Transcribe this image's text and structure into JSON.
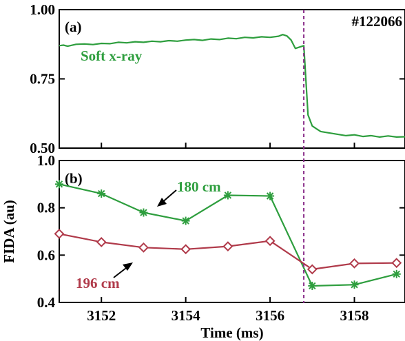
{
  "figure": {
    "shot_label": "#122066",
    "xlabel": "Time (ms)",
    "xticks": [
      "3152",
      "3154",
      "3156",
      "3158"
    ],
    "event_time": 3156.8,
    "event_color": "#8a2e8a"
  },
  "chart_data": [
    {
      "type": "line",
      "panel_label": "(a)",
      "xlim": [
        3151,
        3159.2
      ],
      "ylim": [
        0.5,
        1.0
      ],
      "yticks": [
        "0.50",
        "0.75",
        "1.00"
      ],
      "ylabel": "",
      "series": [
        {
          "name": "Soft x-ray",
          "color": "#2e9e3e",
          "x": [
            3151.0,
            3151.1,
            3151.2,
            3151.4,
            3151.6,
            3151.8,
            3152.0,
            3152.2,
            3152.4,
            3152.6,
            3152.8,
            3153.0,
            3153.2,
            3153.4,
            3153.6,
            3153.8,
            3154.0,
            3154.2,
            3154.4,
            3154.6,
            3154.8,
            3155.0,
            3155.2,
            3155.4,
            3155.6,
            3155.8,
            3156.0,
            3156.2,
            3156.3,
            3156.4,
            3156.5,
            3156.6,
            3156.8,
            3156.9,
            3157.0,
            3157.1,
            3157.2,
            3157.4,
            3157.6,
            3157.8,
            3158.0,
            3158.2,
            3158.4,
            3158.6,
            3158.8,
            3159.0,
            3159.2
          ],
          "values": [
            0.87,
            0.872,
            0.868,
            0.875,
            0.876,
            0.874,
            0.878,
            0.877,
            0.882,
            0.88,
            0.884,
            0.882,
            0.886,
            0.884,
            0.888,
            0.886,
            0.89,
            0.892,
            0.889,
            0.894,
            0.892,
            0.897,
            0.895,
            0.9,
            0.898,
            0.902,
            0.9,
            0.904,
            0.91,
            0.905,
            0.89,
            0.86,
            0.87,
            0.62,
            0.58,
            0.57,
            0.56,
            0.555,
            0.55,
            0.545,
            0.548,
            0.542,
            0.545,
            0.54,
            0.544,
            0.54,
            0.541
          ]
        }
      ]
    },
    {
      "type": "line",
      "panel_label": "(b)",
      "xlim": [
        3151,
        3159.2
      ],
      "ylim": [
        0.4,
        1.0
      ],
      "yticks": [
        "0.4",
        "0.6",
        "0.8",
        "1.0"
      ],
      "ylabel": "FIDA (au)",
      "series": [
        {
          "name": "180 cm",
          "color": "#2e9e3e",
          "marker": "asterisk",
          "x": [
            3151,
            3152,
            3153,
            3154,
            3155,
            3156,
            3157,
            3158,
            3159
          ],
          "values": [
            0.9,
            0.86,
            0.78,
            0.745,
            0.853,
            0.85,
            0.47,
            0.475,
            0.52
          ]
        },
        {
          "name": "196 cm",
          "color": "#b03a4a",
          "marker": "diamond",
          "x": [
            3151,
            3152,
            3153,
            3154,
            3155,
            3156,
            3157,
            3158,
            3159
          ],
          "values": [
            0.69,
            0.655,
            0.632,
            0.625,
            0.637,
            0.66,
            0.54,
            0.565,
            0.567
          ]
        }
      ]
    }
  ]
}
